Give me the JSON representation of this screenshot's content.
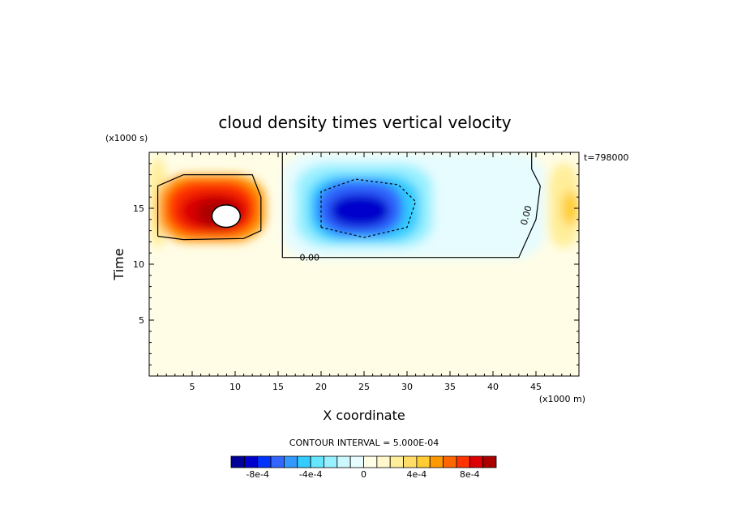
{
  "chart_data": {
    "type": "heatmap",
    "title": "cloud density times vertical velocity",
    "xlabel": "X coordinate",
    "ylabel": "Time",
    "x_units": "(x1000 m)",
    "y_units": "(x1000 s)",
    "time_label": "t=798000",
    "xlim": [
      0,
      50
    ],
    "ylim": [
      0,
      20
    ],
    "xticks": [
      5,
      10,
      15,
      20,
      25,
      30,
      35,
      40,
      45
    ],
    "yticks": [
      5,
      10,
      15
    ],
    "background_value": 0,
    "field_cells": [
      {
        "x": [
          0,
          2
        ],
        "y": [
          11.5,
          19.5
        ],
        "value": 0.00025
      },
      {
        "x": [
          1,
          13.5
        ],
        "y": [
          12,
          18
        ],
        "value": 0.0005
      },
      {
        "x": [
          2,
          12.5
        ],
        "y": [
          12.5,
          17.5
        ],
        "value": 0.0007
      },
      {
        "x": [
          3.5,
          11.5
        ],
        "y": [
          13,
          16.5
        ],
        "value": 0.00085
      },
      {
        "x": [
          5.5,
          10.5
        ],
        "y": [
          13.3,
          15.8
        ],
        "value": 0.001
      },
      {
        "x": [
          15.5,
          46
        ],
        "y": [
          10.5,
          20
        ],
        "value": -0.0001
      },
      {
        "x": [
          17,
          33
        ],
        "y": [
          11.5,
          19
        ],
        "value": -0.0003
      },
      {
        "x": [
          18.5,
          31.5
        ],
        "y": [
          12,
          18
        ],
        "value": -0.0005
      },
      {
        "x": [
          19.5,
          29.5
        ],
        "y": [
          12.5,
          17.5
        ],
        "value": -0.0007
      },
      {
        "x": [
          21,
          28
        ],
        "y": [
          13.3,
          16.3
        ],
        "value": -0.0009
      },
      {
        "x": [
          46.5,
          50
        ],
        "y": [
          11.5,
          19
        ],
        "value": 0.0002
      },
      {
        "x": [
          48,
          50
        ],
        "y": [
          13.5,
          16.5
        ],
        "value": 0.0004
      }
    ],
    "contours": [
      {
        "label": "0.00",
        "points": [
          [
            15.5,
            20
          ],
          [
            15.5,
            10.6
          ],
          [
            43,
            10.6
          ],
          [
            45,
            14
          ],
          [
            45.5,
            17
          ],
          [
            44.5,
            18.5
          ],
          [
            44.5,
            20
          ]
        ]
      },
      {
        "label": "",
        "points": [
          [
            1,
            12.5
          ],
          [
            1,
            17
          ],
          [
            4,
            18
          ],
          [
            12,
            18
          ],
          [
            13,
            16
          ],
          [
            13,
            13
          ],
          [
            11,
            12.3
          ],
          [
            4,
            12.2
          ],
          [
            1,
            12.5
          ]
        ]
      },
      {
        "label": "",
        "dashed": true,
        "points": [
          [
            20,
            13.3
          ],
          [
            20,
            16.5
          ],
          [
            24,
            17.6
          ],
          [
            29,
            17.1
          ],
          [
            31,
            15.6
          ],
          [
            30,
            13.3
          ],
          [
            25,
            12.4
          ],
          [
            20,
            13.3
          ]
        ]
      }
    ],
    "missing_region": {
      "x": [
        7.3,
        10.6
      ],
      "y": [
        13.3,
        15.3
      ]
    },
    "contour_interval_text": "CONTOUR INTERVAL = 5.000E-04",
    "colorbar": {
      "colors": [
        "#000099",
        "#0000cc",
        "#0033ff",
        "#3366ff",
        "#3399ff",
        "#33ccff",
        "#66e6ff",
        "#99f0ff",
        "#ccf7ff",
        "#e6fcff",
        "#fffde6",
        "#fff8cc",
        "#ffee99",
        "#ffdd66",
        "#ffcc33",
        "#ff9900",
        "#ff6600",
        "#ff3300",
        "#dd0000",
        "#aa0000"
      ],
      "tick_labels": [
        "-8e-4",
        "-4e-4",
        "0",
        "4e-4",
        "8e-4"
      ]
    }
  }
}
